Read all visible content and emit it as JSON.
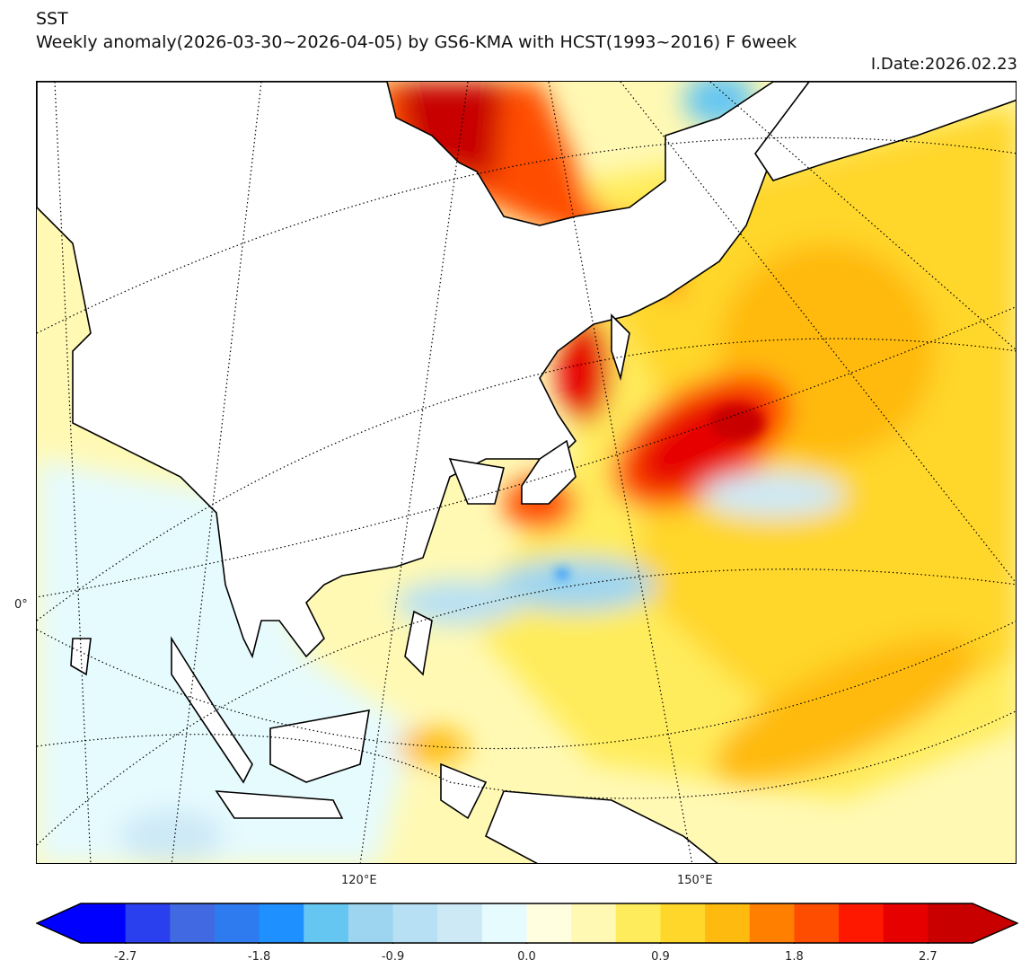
{
  "header": {
    "title": "SST",
    "subtitle": "Weekly anomaly(2026-03-30~2026-04-05) by GS6-KMA with HCST(1993~2016) F 6week",
    "issue_date": "I.Date:2026.02.23"
  },
  "map": {
    "lat_labels": [
      "0°"
    ],
    "lon_labels": [
      "120°E",
      "150°E"
    ]
  },
  "colorbar": {
    "ticks": [
      "-2.7",
      "-1.8",
      "-0.9",
      "0.0",
      "0.9",
      "1.8",
      "2.7"
    ],
    "colors": [
      "#0000ff",
      "#2a40ee",
      "#4169e1",
      "#2e7bf0",
      "#1e90ff",
      "#66c6f2",
      "#9dd5f0",
      "#b8e0f4",
      "#cde9f6",
      "#e6fbfe",
      "#ffffe0",
      "#fff9b4",
      "#ffec5c",
      "#ffd62a",
      "#ffba10",
      "#ff7f00",
      "#ff4d00",
      "#ff1800",
      "#e60000",
      "#c80000"
    ]
  }
}
